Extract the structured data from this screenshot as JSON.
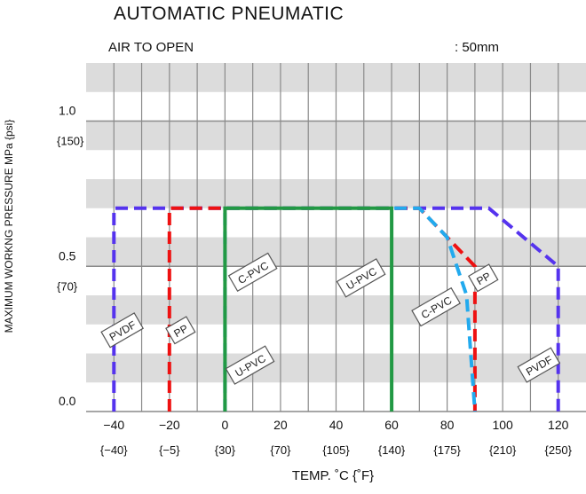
{
  "header": {
    "title": "AUTOMATIC  PNEUMATIC",
    "subtitle": "AIR TO OPEN",
    "size_label": ": 50mm"
  },
  "chart_data": {
    "type": "line",
    "title": "AUTOMATIC  PNEUMATIC",
    "xlabel": "TEMP. ˚C {˚F}",
    "ylabel": "MAXIMUM WORKNG PRESSURE   MPa {psi}",
    "xlim": [
      -50,
      130
    ],
    "ylim": [
      0,
      1.2
    ],
    "x_ticks": [
      -40,
      -20,
      0,
      20,
      40,
      60,
      80,
      100,
      120
    ],
    "x_tick_labels": [
      "−40",
      "−20",
      "0",
      "20",
      "40",
      "60",
      "80",
      "100",
      "120"
    ],
    "x_tick_sublabels": [
      "{−40}",
      "{−5}",
      "{30}",
      "{70}",
      "{105}",
      "{140}",
      "{175}",
      "{210}",
      "{250}"
    ],
    "y_ticks": [
      {
        "value": 1.0,
        "label": "1.0",
        "sublabel": "{150}"
      },
      {
        "value": 0.5,
        "label": "0.5",
        "sublabel": "{70}"
      },
      {
        "value": 0.0,
        "label": "0.0",
        "sublabel": ""
      }
    ],
    "grid": true,
    "series": [
      {
        "name": "PVDF",
        "color": "#5533ee",
        "style": "dashed",
        "points": [
          [
            -40,
            0
          ],
          [
            -40,
            0.7
          ],
          [
            95,
            0.7
          ],
          [
            120,
            0.5
          ],
          [
            120,
            0
          ]
        ]
      },
      {
        "name": "PP",
        "color": "#ee1111",
        "style": "dashed",
        "points": [
          [
            -20,
            0
          ],
          [
            -20,
            0.7
          ],
          [
            70,
            0.7
          ],
          [
            90,
            0.5
          ],
          [
            90,
            0
          ]
        ]
      },
      {
        "name": "C-PVC",
        "color": "#22aaee",
        "style": "dashed",
        "points": [
          [
            0,
            0
          ],
          [
            0,
            0.7
          ],
          [
            70,
            0.7
          ],
          [
            80,
            0.6
          ],
          [
            87,
            0.4
          ],
          [
            90,
            0
          ]
        ]
      },
      {
        "name": "U-PVC",
        "color": "#229944",
        "style": "solid",
        "points": [
          [
            0,
            0
          ],
          [
            0,
            0.7
          ],
          [
            60,
            0.7
          ],
          [
            60,
            0
          ]
        ]
      }
    ],
    "labels": [
      {
        "text": "PVDF",
        "x": -37,
        "y": 0.28
      },
      {
        "text": "PP",
        "x": -16,
        "y": 0.28
      },
      {
        "text": "C-PVC",
        "x": 10,
        "y": 0.48
      },
      {
        "text": "U-PVC",
        "x": 9,
        "y": 0.16
      },
      {
        "text": "U-PVC",
        "x": 49,
        "y": 0.46
      },
      {
        "text": "C-PVC",
        "x": 76,
        "y": 0.36
      },
      {
        "text": "PP",
        "x": 93,
        "y": 0.46
      },
      {
        "text": "PVDF",
        "x": 113,
        "y": 0.16
      }
    ]
  }
}
